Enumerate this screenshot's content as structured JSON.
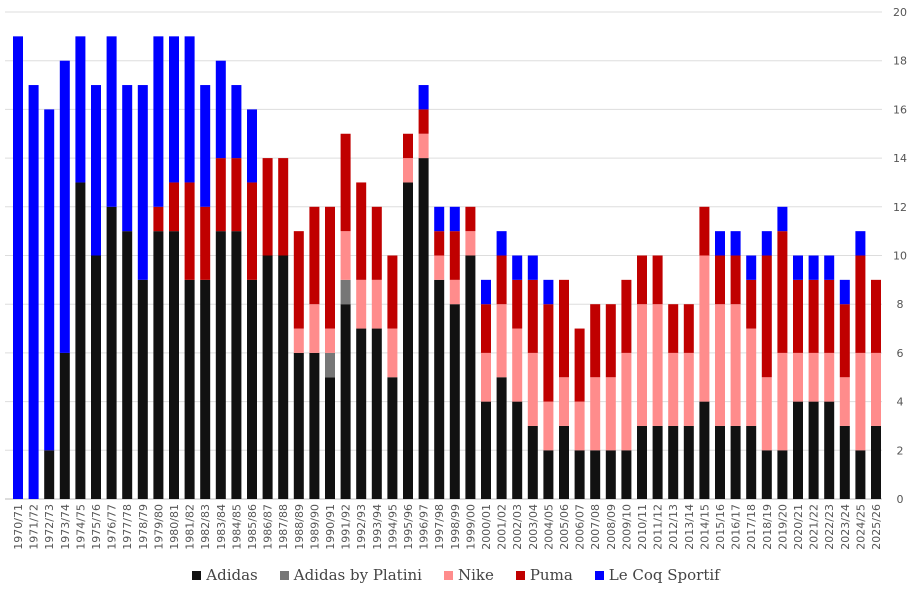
{
  "chart_data": {
    "type": "bar",
    "stacked": true,
    "title": "",
    "xlabel": "",
    "ylabel": "",
    "ylim": [
      0,
      20
    ],
    "yticks": [
      0,
      2,
      4,
      6,
      8,
      10,
      12,
      14,
      16,
      18,
      20
    ],
    "grid": true,
    "legend_position": "bottom",
    "categories": [
      "1970/71",
      "1971/72",
      "1972/73",
      "1973/74",
      "1974/75",
      "1975/76",
      "1976/77",
      "1977/78",
      "1978/79",
      "1979/80",
      "1980/81",
      "1981/82",
      "1982/83",
      "1983/84",
      "1984/85",
      "1985/86",
      "1986/87",
      "1987/88",
      "1988/89",
      "1989/90",
      "1990/91",
      "1991/92",
      "1992/93",
      "1993/94",
      "1994/95",
      "1995/96",
      "1996/97",
      "1997/98",
      "1998/99",
      "1999/00",
      "2000/01",
      "2001/02",
      "2002/03",
      "2003/04",
      "2004/05",
      "2005/06",
      "2006/07",
      "2007/08",
      "2008/09",
      "2009/10",
      "2010/11",
      "2011/12",
      "2012/13",
      "2013/14",
      "2014/15",
      "2015/16",
      "2016/17",
      "2017/18",
      "2018/19",
      "2019/20",
      "2020/21",
      "2021/22",
      "2022/23",
      "2023/24",
      "2024/25",
      "2025/26"
    ],
    "series": [
      {
        "name": "Adidas",
        "color": "#111111",
        "values": [
          0,
          0,
          2,
          6,
          13,
          10,
          12,
          11,
          9,
          11,
          11,
          9,
          9,
          11,
          11,
          9,
          10,
          10,
          6,
          6,
          5,
          8,
          7,
          7,
          5,
          13,
          14,
          9,
          8,
          10,
          4,
          5,
          4,
          3,
          2,
          3,
          2,
          2,
          2,
          2,
          3,
          3,
          3,
          3,
          4,
          3,
          3,
          3,
          2,
          2,
          4,
          4,
          4,
          3,
          2,
          3
        ]
      },
      {
        "name": "Adidas by Platini",
        "color": "#777777",
        "values": [
          0,
          0,
          0,
          0,
          0,
          0,
          0,
          0,
          0,
          0,
          0,
          0,
          0,
          0,
          0,
          0,
          0,
          0,
          0,
          0,
          1,
          1,
          0,
          0,
          0,
          0,
          0,
          0,
          0,
          0,
          0,
          0,
          0,
          0,
          0,
          0,
          0,
          0,
          0,
          0,
          0,
          0,
          0,
          0,
          0,
          0,
          0,
          0,
          0,
          0,
          0,
          0,
          0,
          0,
          0,
          0
        ]
      },
      {
        "name": "Nike",
        "color": "#ff8c8c",
        "values": [
          0,
          0,
          0,
          0,
          0,
          0,
          0,
          0,
          0,
          0,
          0,
          0,
          0,
          0,
          0,
          0,
          0,
          0,
          1,
          2,
          1,
          2,
          2,
          2,
          2,
          1,
          1,
          1,
          1,
          1,
          2,
          3,
          3,
          3,
          2,
          2,
          2,
          3,
          3,
          4,
          5,
          5,
          3,
          3,
          6,
          5,
          5,
          4,
          3,
          4,
          2,
          2,
          2,
          2,
          4,
          3
        ]
      },
      {
        "name": "Puma",
        "color": "#c00000",
        "values": [
          0,
          0,
          0,
          0,
          0,
          0,
          0,
          0,
          0,
          1,
          2,
          4,
          3,
          3,
          3,
          4,
          4,
          4,
          4,
          4,
          5,
          4,
          4,
          3,
          3,
          1,
          1,
          1,
          2,
          1,
          2,
          2,
          2,
          3,
          4,
          4,
          3,
          3,
          3,
          3,
          2,
          2,
          2,
          2,
          2,
          2,
          2,
          2,
          5,
          5,
          3,
          3,
          3,
          3,
          4,
          3
        ]
      },
      {
        "name": "Le Coq Sportif",
        "color": "#0000ff",
        "values": [
          19,
          17,
          14,
          12,
          6,
          7,
          7,
          6,
          8,
          7,
          6,
          6,
          5,
          4,
          3,
          3,
          0,
          0,
          0,
          0,
          0,
          0,
          0,
          0,
          0,
          0,
          1,
          1,
          1,
          0,
          1,
          1,
          1,
          1,
          1,
          0,
          0,
          0,
          0,
          0,
          0,
          0,
          0,
          0,
          0,
          1,
          1,
          1,
          1,
          1,
          1,
          1,
          1,
          1,
          1,
          0
        ]
      }
    ]
  }
}
